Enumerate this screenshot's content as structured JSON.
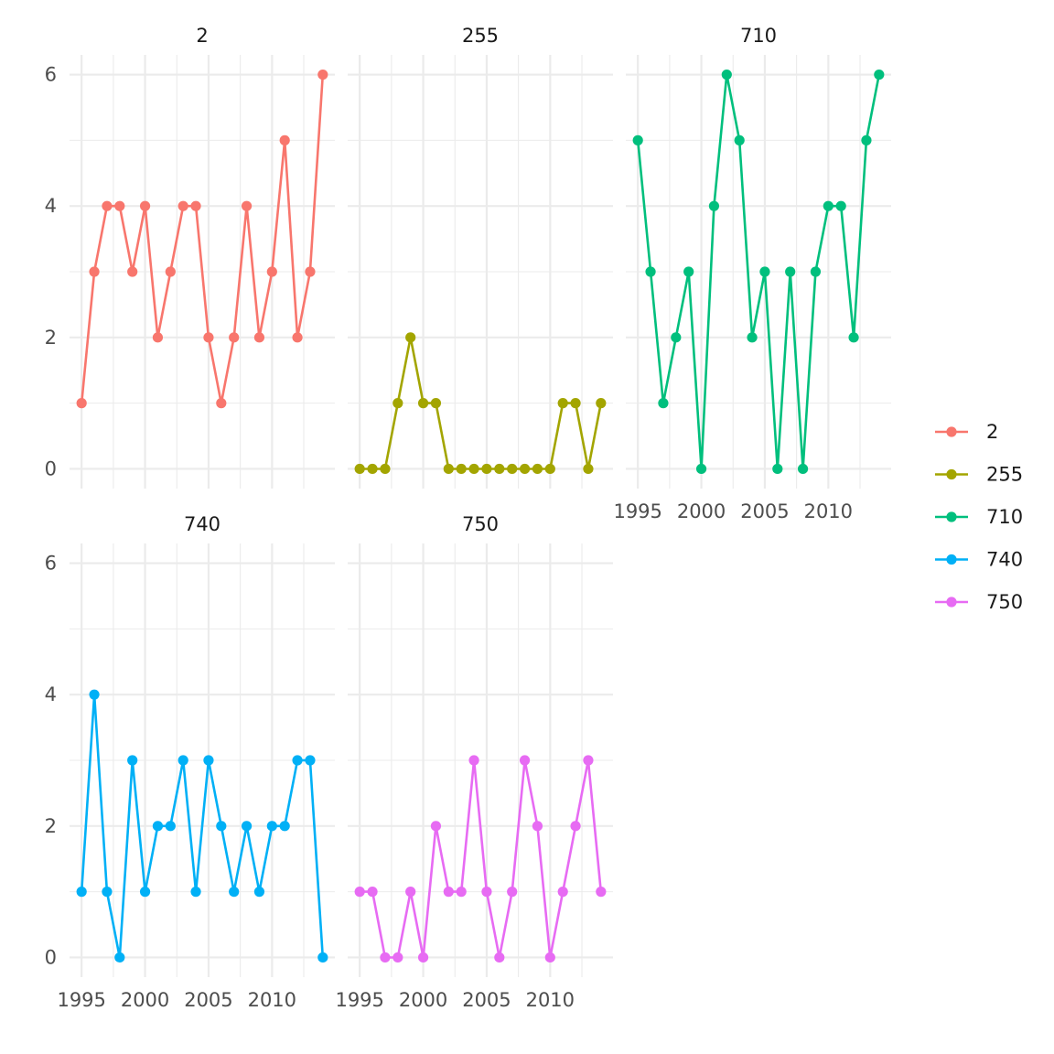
{
  "chart_data": {
    "type": "line",
    "facet_by": "group",
    "x": [
      1995,
      1996,
      1997,
      1998,
      1999,
      2000,
      2001,
      2002,
      2003,
      2004,
      2005,
      2006,
      2007,
      2008,
      2009,
      2010,
      2011,
      2012,
      2013,
      2014
    ],
    "xlim": [
      1995,
      2014
    ],
    "ylim": [
      0,
      6
    ],
    "x_ticks": [
      1995,
      2000,
      2005,
      2010
    ],
    "x_tick_labels": [
      "1995",
      "2000",
      "2005",
      "2010"
    ],
    "y_ticks": [
      0,
      2,
      4,
      6
    ],
    "y_tick_labels": [
      "0",
      "2",
      "4",
      "6"
    ],
    "grid": true,
    "legend_position": "right",
    "series": [
      {
        "name": "2",
        "color": "#F8766D",
        "values": [
          1,
          3,
          4,
          4,
          3,
          4,
          2,
          3,
          4,
          4,
          2,
          1,
          2,
          4,
          2,
          3,
          5,
          2,
          3,
          6
        ]
      },
      {
        "name": "255",
        "color": "#A3A500",
        "values": [
          0,
          0,
          0,
          1,
          2,
          1,
          1,
          0,
          0,
          0,
          0,
          0,
          0,
          0,
          0,
          0,
          1,
          1,
          0,
          1
        ]
      },
      {
        "name": "710",
        "color": "#00BF7D",
        "values": [
          5,
          3,
          1,
          2,
          3,
          0,
          4,
          6,
          5,
          2,
          3,
          0,
          3,
          0,
          3,
          4,
          4,
          2,
          5,
          6
        ]
      },
      {
        "name": "740",
        "color": "#00B0F6",
        "values": [
          1,
          4,
          1,
          0,
          3,
          1,
          2,
          2,
          3,
          1,
          3,
          2,
          1,
          2,
          1,
          2,
          2,
          3,
          3,
          0
        ]
      },
      {
        "name": "750",
        "color": "#E76BF3",
        "values": [
          1,
          1,
          0,
          0,
          1,
          0,
          2,
          1,
          1,
          3,
          1,
          0,
          1,
          3,
          2,
          0,
          1,
          2,
          3,
          1
        ]
      }
    ]
  }
}
